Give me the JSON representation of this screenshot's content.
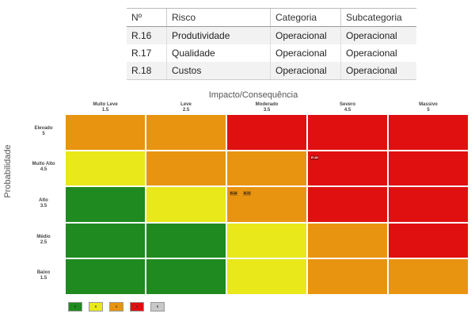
{
  "table": {
    "headers": [
      "Nº",
      "Risco",
      "Categoria",
      "Subcategoria"
    ],
    "rows": [
      [
        "R.16",
        "Produtividade",
        "Operacional",
        "Operacional"
      ],
      [
        "R.17",
        "Qualidade",
        "Operacional",
        "Operacional"
      ],
      [
        "R.18",
        "Custos",
        "Operacional",
        "Operacional"
      ]
    ]
  },
  "chart_data": {
    "type": "heatmap",
    "title": "Impacto/Consequência",
    "ylabel": "Probabilidade",
    "columns": [
      {
        "label": "Muito Leve",
        "value": "1.5"
      },
      {
        "label": "Leve",
        "value": "2.5"
      },
      {
        "label": "Moderado",
        "value": "3.5"
      },
      {
        "label": "Severo",
        "value": "4.5"
      },
      {
        "label": "Massivo",
        "value": "5"
      }
    ],
    "rows": [
      {
        "label": "Elevado",
        "value": "5"
      },
      {
        "label": "Muito Alto",
        "value": "4.5"
      },
      {
        "label": "Alto",
        "value": "3.5"
      },
      {
        "label": "Médio",
        "value": "2.5"
      },
      {
        "label": "Baixo",
        "value": "1.5"
      }
    ],
    "levels": {
      "green": "#1f8a1f",
      "yellow": "#e8e81a",
      "orange": "#e89410",
      "red": "#e01010"
    },
    "grid": [
      [
        "orange",
        "orange",
        "red",
        "red",
        "red"
      ],
      [
        "yellow",
        "orange",
        "orange",
        "red",
        "red"
      ],
      [
        "green",
        "yellow",
        "orange",
        "red",
        "red"
      ],
      [
        "green",
        "green",
        "yellow",
        "orange",
        "red"
      ],
      [
        "green",
        "green",
        "yellow",
        "orange",
        "orange"
      ]
    ],
    "annotations": [
      {
        "row": 1,
        "col": 3,
        "labels": [
          "R.18"
        ]
      },
      {
        "row": 2,
        "col": 2,
        "labels": [
          "R.16",
          "R.17"
        ]
      }
    ],
    "legend": [
      {
        "label": "0",
        "color": "#1f8a1f"
      },
      {
        "label": "0",
        "color": "#e8e81a"
      },
      {
        "label": "2",
        "color": "#e89410"
      },
      {
        "label": "1",
        "color": "#e01010"
      },
      {
        "label": "0",
        "color": "#c8c8c8"
      }
    ]
  }
}
